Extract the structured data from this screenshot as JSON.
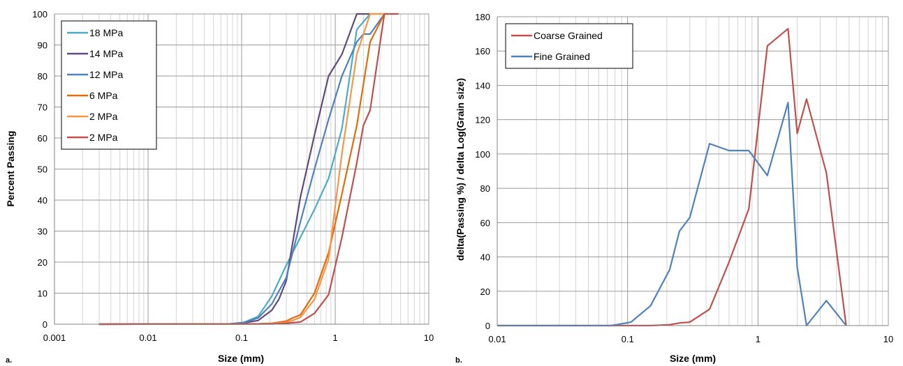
{
  "chart_data": [
    {
      "type": "line",
      "panel_label": "a.",
      "xlabel": "Size (mm)",
      "ylabel": "Percent Passing",
      "xscale": "log",
      "xlim": [
        0.001,
        10
      ],
      "ylim": [
        0,
        100
      ],
      "xticks": [
        0.001,
        0.01,
        0.1,
        1,
        10
      ],
      "xtick_labels": [
        "0.001",
        "0.01",
        "0.1",
        "1",
        "10"
      ],
      "yticks": [
        0,
        10,
        20,
        30,
        40,
        50,
        60,
        70,
        80,
        90,
        100
      ],
      "ytick_labels": [
        "0",
        "10",
        "20",
        "30",
        "40",
        "50",
        "60",
        "70",
        "80",
        "90",
        "100"
      ],
      "grid": true,
      "legend_position": "top-left",
      "series": [
        {
          "name": "18 MPa",
          "color": "#4bacc6",
          "x": [
            0.003,
            0.075,
            0.106,
            0.15,
            0.21,
            0.3,
            0.425,
            0.6,
            0.85,
            1.18,
            1.7,
            2.36,
            3.35
          ],
          "y": [
            0,
            0.1,
            0.6,
            2.5,
            9,
            19,
            28,
            37,
            47,
            63,
            95,
            100,
            100
          ]
        },
        {
          "name": "14 MPa",
          "color": "#604a7b",
          "x": [
            0.003,
            0.075,
            0.106,
            0.15,
            0.21,
            0.25,
            0.3,
            0.425,
            0.6,
            0.85,
            1.18,
            1.7,
            2.36
          ],
          "y": [
            0,
            0.1,
            0.4,
            1.2,
            4.5,
            8,
            14,
            41,
            61,
            80,
            87,
            100,
            100
          ]
        },
        {
          "name": "12 MPa",
          "color": "#4f81bd",
          "x": [
            0.003,
            0.075,
            0.106,
            0.15,
            0.21,
            0.3,
            0.425,
            0.6,
            0.85,
            1.18,
            1.7,
            2.0,
            2.36,
            3.35
          ],
          "y": [
            0,
            0.1,
            0.5,
            2,
            6.5,
            15,
            33,
            50,
            66,
            80,
            91,
            93.5,
            93.5,
            100
          ]
        },
        {
          "name": "6 MPa",
          "color": "#e36c09",
          "x": [
            0.003,
            0.15,
            0.21,
            0.3,
            0.35,
            0.425,
            0.6,
            0.85,
            1.18,
            1.7,
            2.36,
            3.35
          ],
          "y": [
            0,
            0.1,
            0.3,
            1,
            2,
            3,
            10,
            23,
            42,
            64,
            91,
            100
          ]
        },
        {
          "name": "2 MPa",
          "color": "#f79646",
          "x": [
            0.003,
            0.15,
            0.21,
            0.3,
            0.35,
            0.425,
            0.6,
            0.85,
            1.18,
            1.7,
            2.36,
            3.35
          ],
          "y": [
            0,
            0.1,
            0.2,
            0.6,
            1.2,
            2.2,
            8,
            21,
            55,
            87,
            100,
            100
          ]
        },
        {
          "name": "2 MPa",
          "color": "#c0504d",
          "x": [
            0.003,
            0.21,
            0.3,
            0.425,
            0.6,
            0.85,
            1.18,
            1.7,
            2.0,
            2.36,
            3.35,
            4.75
          ],
          "y": [
            0,
            0.1,
            0.3,
            0.7,
            3.5,
            9.5,
            28,
            52,
            64,
            69,
            100,
            100
          ]
        }
      ]
    },
    {
      "type": "line",
      "panel_label": "b.",
      "xlabel": "Size (mm)",
      "ylabel": "delta(Passing %) / delta Log(Grain size)",
      "xscale": "log",
      "xlim": [
        0.01,
        10
      ],
      "ylim": [
        0,
        180
      ],
      "xticks": [
        0.01,
        0.1,
        1,
        10
      ],
      "xtick_labels": [
        "0.01",
        "0.1",
        "1",
        "10"
      ],
      "yticks": [
        0,
        20,
        40,
        60,
        80,
        100,
        120,
        140,
        160,
        180
      ],
      "ytick_labels": [
        "0",
        "20",
        "40",
        "60",
        "80",
        "100",
        "120",
        "140",
        "160",
        "180"
      ],
      "grid": true,
      "legend_position": "top-left",
      "series": [
        {
          "name": "Coarse Grained",
          "color": "#c0504d",
          "x": [
            0.01,
            0.075,
            0.15,
            0.21,
            0.25,
            0.3,
            0.425,
            0.6,
            0.85,
            1.18,
            1.7,
            2.0,
            2.36,
            3.35,
            4.75
          ],
          "y": [
            0,
            0,
            0,
            0.5,
            1.5,
            2,
            9.5,
            37,
            68,
            163,
            173,
            112,
            132,
            89,
            0
          ]
        },
        {
          "name": "Fine Grained",
          "color": "#4f81bd",
          "x": [
            0.01,
            0.075,
            0.106,
            0.15,
            0.21,
            0.25,
            0.3,
            0.425,
            0.6,
            0.85,
            1.18,
            1.7,
            2.0,
            2.36,
            3.35,
            4.75
          ],
          "y": [
            0,
            0,
            2,
            11.5,
            32.5,
            55,
            63,
            106,
            102,
            102,
            87.5,
            130,
            34,
            0,
            14.5,
            0
          ]
        }
      ]
    }
  ]
}
